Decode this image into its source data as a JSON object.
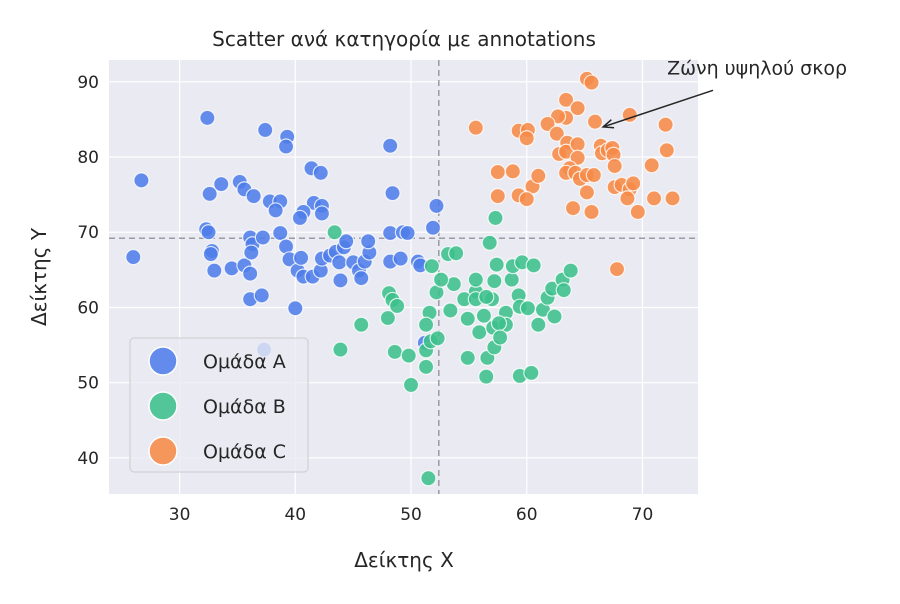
{
  "chart_data": {
    "type": "scatter",
    "title": "Scatter ανά κατηγορία με annotations",
    "xlabel": "Δείκτης X",
    "ylabel": "Δείκτης Υ",
    "xlim": [
      23.9,
      74.8
    ],
    "ylim": [
      35.2,
      92.9
    ],
    "xticks": [
      30,
      40,
      50,
      60,
      70
    ],
    "yticks": [
      40,
      50,
      60,
      70,
      80,
      90
    ],
    "grid": true,
    "legend_position": "lower-left",
    "reference_lines": {
      "vertical_x": 52.4,
      "horizontal_y": 69.2
    },
    "annotation": {
      "text": "Ζώνη υψηλού σκορ",
      "point": [
        66.6,
        84.0
      ],
      "text_position": [
        72.3,
        91.0
      ]
    },
    "series": [
      {
        "name": "Ομάδα A",
        "color": "#4f7de9",
        "points": [
          [
            26.7,
            76.9
          ],
          [
            26.0,
            66.7
          ],
          [
            32.4,
            85.2
          ],
          [
            37.4,
            83.6
          ],
          [
            39.3,
            82.7
          ],
          [
            39.2,
            81.4
          ],
          [
            32.6,
            75.1
          ],
          [
            33.6,
            76.4
          ],
          [
            35.2,
            76.7
          ],
          [
            35.6,
            75.7
          ],
          [
            36.4,
            74.8
          ],
          [
            37.8,
            74.1
          ],
          [
            38.7,
            74.1
          ],
          [
            38.3,
            72.9
          ],
          [
            41.4,
            78.5
          ],
          [
            42.2,
            77.9
          ],
          [
            41.6,
            73.9
          ],
          [
            42.3,
            73.5
          ],
          [
            40.7,
            72.7
          ],
          [
            40.4,
            71.9
          ],
          [
            42.3,
            72.5
          ],
          [
            48.2,
            81.5
          ],
          [
            48.4,
            75.2
          ],
          [
            52.2,
            73.5
          ],
          [
            51.9,
            70.6
          ],
          [
            32.3,
            70.4
          ],
          [
            32.5,
            70.0
          ],
          [
            32.8,
            67.5
          ],
          [
            32.7,
            67.1
          ],
          [
            33.0,
            64.9
          ],
          [
            34.5,
            65.2
          ],
          [
            36.1,
            61.1
          ],
          [
            35.6,
            65.6
          ],
          [
            36.1,
            64.5
          ],
          [
            37.1,
            61.6
          ],
          [
            36.1,
            69.3
          ],
          [
            36.3,
            68.4
          ],
          [
            36.2,
            67.3
          ],
          [
            37.2,
            69.3
          ],
          [
            38.7,
            69.9
          ],
          [
            39.2,
            68.1
          ],
          [
            39.5,
            66.4
          ],
          [
            40.2,
            64.9
          ],
          [
            40.5,
            66.6
          ],
          [
            40.0,
            59.9
          ],
          [
            40.7,
            64.1
          ],
          [
            41.5,
            64.1
          ],
          [
            42.2,
            64.9
          ],
          [
            42.3,
            66.5
          ],
          [
            43.0,
            66.9
          ],
          [
            43.5,
            67.4
          ],
          [
            44.2,
            68.0
          ],
          [
            44.4,
            68.8
          ],
          [
            43.8,
            66.0
          ],
          [
            43.9,
            63.6
          ],
          [
            45.0,
            66.0
          ],
          [
            45.5,
            64.9
          ],
          [
            45.7,
            63.9
          ],
          [
            46.0,
            66.1
          ],
          [
            46.4,
            67.3
          ],
          [
            46.3,
            68.8
          ],
          [
            48.2,
            69.9
          ],
          [
            48.2,
            66.1
          ],
          [
            49.1,
            66.5
          ],
          [
            49.3,
            70.0
          ],
          [
            49.7,
            69.9
          ],
          [
            50.6,
            66.1
          ],
          [
            50.8,
            65.6
          ],
          [
            51.2,
            55.3
          ],
          [
            37.3,
            54.4
          ]
        ]
      },
      {
        "name": "Ομάδα B",
        "color": "#3cc08c",
        "points": [
          [
            43.4,
            70.0
          ],
          [
            51.8,
            65.5
          ],
          [
            53.2,
            67.1
          ],
          [
            53.9,
            67.2
          ],
          [
            57.3,
            71.9
          ],
          [
            56.8,
            68.6
          ],
          [
            52.2,
            62.0
          ],
          [
            53.7,
            63.1
          ],
          [
            52.6,
            63.7
          ],
          [
            48.1,
            61.9
          ],
          [
            48.4,
            61.0
          ],
          [
            48.8,
            60.2
          ],
          [
            48.0,
            58.6
          ],
          [
            45.7,
            57.7
          ],
          [
            43.9,
            54.4
          ],
          [
            48.6,
            54.1
          ],
          [
            49.8,
            53.6
          ],
          [
            51.3,
            52.1
          ],
          [
            51.3,
            54.3
          ],
          [
            51.7,
            55.5
          ],
          [
            52.3,
            55.9
          ],
          [
            51.6,
            59.3
          ],
          [
            51.3,
            57.7
          ],
          [
            50.0,
            49.7
          ],
          [
            51.5,
            37.3
          ],
          [
            53.4,
            59.6
          ],
          [
            55.6,
            62.1
          ],
          [
            55.6,
            63.7
          ],
          [
            54.6,
            61.1
          ],
          [
            55.6,
            61.1
          ],
          [
            54.9,
            58.5
          ],
          [
            56.3,
            58.9
          ],
          [
            55.9,
            56.7
          ],
          [
            57.1,
            57.3
          ],
          [
            58.2,
            59.3
          ],
          [
            57.0,
            61.1
          ],
          [
            56.5,
            61.4
          ],
          [
            57.2,
            63.5
          ],
          [
            58.7,
            63.7
          ],
          [
            57.4,
            65.7
          ],
          [
            58.8,
            65.5
          ],
          [
            59.6,
            66.0
          ],
          [
            60.6,
            65.6
          ],
          [
            59.3,
            61.6
          ],
          [
            59.4,
            60.1
          ],
          [
            60.1,
            59.9
          ],
          [
            61.0,
            57.7
          ],
          [
            61.4,
            59.7
          ],
          [
            61.8,
            61.3
          ],
          [
            62.2,
            62.5
          ],
          [
            63.1,
            63.7
          ],
          [
            63.8,
            64.9
          ],
          [
            63.2,
            62.3
          ],
          [
            62.4,
            58.8
          ],
          [
            58.2,
            57.7
          ],
          [
            57.6,
            57.9
          ],
          [
            56.5,
            50.8
          ],
          [
            54.9,
            53.3
          ],
          [
            56.6,
            53.3
          ],
          [
            57.2,
            54.7
          ],
          [
            57.7,
            56.0
          ],
          [
            59.4,
            50.9
          ],
          [
            60.4,
            51.3
          ]
        ]
      },
      {
        "name": "Ομάδα C",
        "color": "#f68a48",
        "points": [
          [
            55.6,
            83.9
          ],
          [
            65.2,
            90.4
          ],
          [
            65.6,
            89.9
          ],
          [
            63.4,
            87.6
          ],
          [
            64.4,
            86.5
          ],
          [
            63.4,
            85.2
          ],
          [
            62.7,
            85.4
          ],
          [
            61.8,
            84.4
          ],
          [
            59.3,
            83.5
          ],
          [
            60.1,
            83.6
          ],
          [
            60.0,
            82.5
          ],
          [
            62.6,
            83.1
          ],
          [
            63.5,
            81.9
          ],
          [
            62.8,
            80.4
          ],
          [
            63.4,
            80.7
          ],
          [
            64.4,
            81.7
          ],
          [
            64.4,
            79.9
          ],
          [
            63.7,
            78.5
          ],
          [
            63.4,
            77.9
          ],
          [
            57.5,
            78.0
          ],
          [
            58.8,
            78.1
          ],
          [
            57.5,
            74.8
          ],
          [
            59.3,
            74.9
          ],
          [
            60.5,
            76.1
          ],
          [
            61.0,
            77.5
          ],
          [
            60.0,
            74.4
          ],
          [
            64.2,
            77.9
          ],
          [
            64.6,
            77.1
          ],
          [
            65.2,
            77.6
          ],
          [
            65.2,
            75.3
          ],
          [
            65.6,
            72.7
          ],
          [
            64.0,
            73.2
          ],
          [
            65.8,
            77.6
          ],
          [
            66.4,
            81.5
          ],
          [
            66.5,
            80.5
          ],
          [
            67.0,
            80.9
          ],
          [
            67.4,
            81.2
          ],
          [
            67.5,
            80.3
          ],
          [
            67.6,
            78.8
          ],
          [
            67.6,
            76.0
          ],
          [
            68.2,
            76.3
          ],
          [
            68.9,
            75.7
          ],
          [
            68.7,
            74.5
          ],
          [
            69.2,
            76.5
          ],
          [
            69.6,
            72.7
          ],
          [
            70.8,
            78.9
          ],
          [
            72.1,
            80.9
          ],
          [
            72.0,
            84.3
          ],
          [
            68.9,
            85.6
          ],
          [
            71.0,
            74.5
          ],
          [
            72.6,
            74.5
          ],
          [
            67.8,
            65.1
          ],
          [
            65.9,
            84.7
          ]
        ]
      }
    ]
  }
}
